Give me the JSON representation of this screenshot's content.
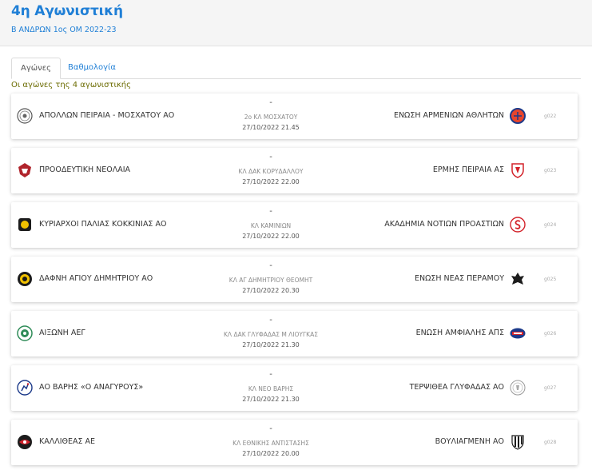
{
  "header": {
    "title": "4η Αγωνιστική",
    "subtitle": "Β ΑΝΔΡΩΝ 1ος ΟΜ 2022-23"
  },
  "tabs": [
    {
      "label": "Αγώνες",
      "active": true
    },
    {
      "label": "Βαθμολογία",
      "active": false
    }
  ],
  "round_caption": "Οι αγώνες της 4 αγωνιστικής",
  "matches": [
    {
      "home": "ΑΠΟΛΛΩΝ ΠΕΙΡΑΙΑ - ΜΟΣΧΑΤΟΥ ΑΟ",
      "away": "ΕΝΩΣΗ ΑΡΜΕΝΙΩΝ ΑΘΛΗΤΩΝ",
      "score": "-",
      "venue": "2ο ΚΛ ΜΟΣΧΑΤΟΥ",
      "datetime": "27/10/2022 21.45",
      "code": "g022",
      "home_icon": "apollon-crest-icon",
      "away_icon": "armenian-crest-icon"
    },
    {
      "home": "ΠΡΟΟΔΕΥΤΙΚΗ ΝΕΟΛΑΙΑ",
      "away": "ΕΡΜΗΣ ΠΕΙΡΑΙΑ ΑΣ",
      "score": "-",
      "venue": "ΚΛ ΔΑΚ ΚΟΡΥΔΑΛΛΟΥ",
      "datetime": "27/10/2022 22.00",
      "code": "g023",
      "home_icon": "proodeftiki-crest-icon",
      "away_icon": "ermis-crest-icon"
    },
    {
      "home": "ΚΥΡΙΑΡΧΟΙ ΠΑΛΙΑΣ ΚΟΚΚΙΝΙΑΣ ΑΟ",
      "away": "ΑΚΑΔΗΜΙΑ ΝΟΤΙΩΝ ΠΡΟΑΣΤΙΩΝ",
      "score": "-",
      "venue": "ΚΛ ΚΑΜΙΝΙΩΝ",
      "datetime": "27/10/2022 22.00",
      "code": "g024",
      "home_icon": "kyriarxoi-crest-icon",
      "away_icon": "akadimia-crest-icon"
    },
    {
      "home": "ΔΑΦΝΗ ΑΓΙΟΥ ΔΗΜΗΤΡΙΟΥ ΑΟ",
      "away": "ΕΝΩΣΗ ΝΕΑΣ ΠΕΡΑΜΟΥ",
      "score": "-",
      "venue": "ΚΛ ΑΓ ΔΗΜΗΤΡΙΟΥ ΘΕΟΜΗΤ",
      "datetime": "27/10/2022 20.30",
      "code": "g025",
      "home_icon": "dafni-crest-icon",
      "away_icon": "peramos-crest-icon"
    },
    {
      "home": "ΑΙΞΩΝΗ ΑΕΓ",
      "away": "ΕΝΩΣΗ ΑΜΦΙΑΛΗΣ ΑΠΣ",
      "score": "-",
      "venue": "ΚΛ ΔΑΚ ΓΛΥΦΑΔΑΣ Μ ΛΙΟΥΓΚΑΣ",
      "datetime": "27/10/2022 21.30",
      "code": "g026",
      "home_icon": "aixoni-crest-icon",
      "away_icon": "amfiali-crest-icon"
    },
    {
      "home": "ΑΟ ΒΑΡΗΣ «Ο ΑΝΑΓΥΡΟΥΣ»",
      "away": "ΤΕΡΨΙΘΕΑ ΓΛΥΦΑΔΑΣ ΑΟ",
      "score": "-",
      "venue": "ΚΛ ΝΕΟ ΒΑΡΗΣ",
      "datetime": "27/10/2022 21.30",
      "code": "g027",
      "home_icon": "varis-crest-icon",
      "away_icon": "terpsithea-crest-icon"
    },
    {
      "home": "ΚΑΛΛΙΘΕΑΣ ΑΕ",
      "away": "ΒΟΥΛΙΑΓΜΕΝΗ ΑΟ",
      "score": "-",
      "venue": "ΚΛ ΕΘΝΙΚΗΣ ΑΝΤΙΣΤΑΣΗΣ",
      "datetime": "27/10/2022 20.00",
      "code": "g028",
      "home_icon": "kallithea-crest-icon",
      "away_icon": "vouliagmeni-crest-icon"
    }
  ],
  "colors": {
    "accent": "#1f7fd6",
    "caption": "#6b6b00"
  }
}
